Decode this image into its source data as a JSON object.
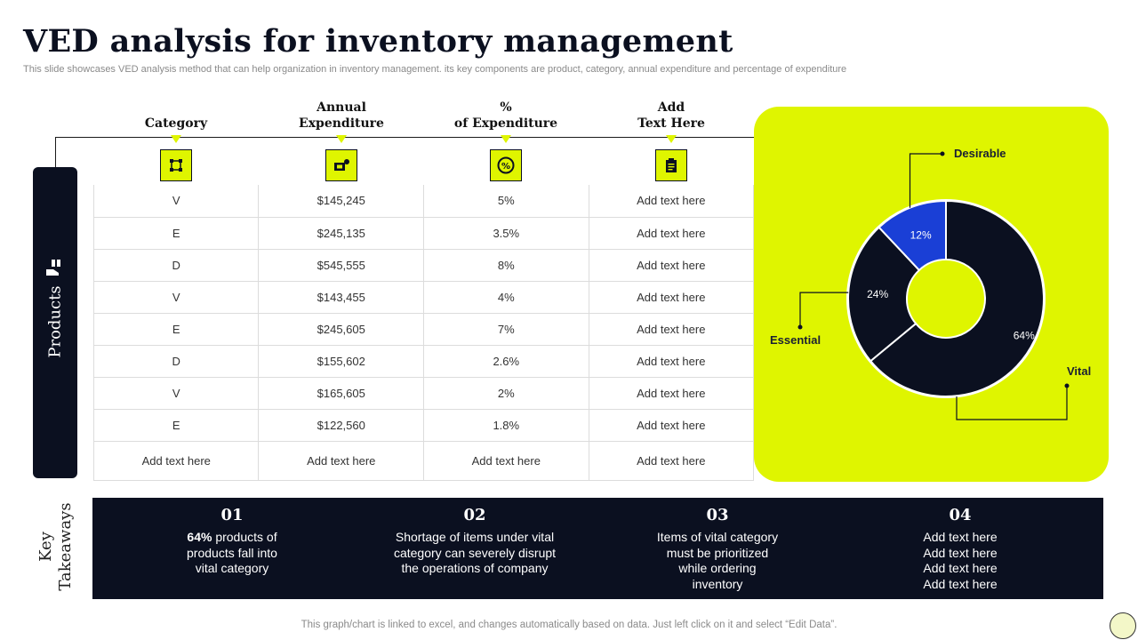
{
  "title": "VED analysis for inventory management",
  "subtitle": "This slide showcases VED analysis method that can help organization in inventory management. its key components are product, category, annual expenditure and percentage of expenditure",
  "columns": [
    {
      "line1": "",
      "line2": "Category",
      "icon": "network-icon"
    },
    {
      "line1": "Annual",
      "line2": "Expenditure",
      "icon": "money-icon"
    },
    {
      "line1": "%",
      "line2": "of Expenditure",
      "icon": "percent-icon"
    },
    {
      "line1": "Add",
      "line2": "Text Here",
      "icon": "clipboard-icon"
    }
  ],
  "products_label": "Products",
  "rows": [
    [
      "V",
      "$145,245",
      "5%",
      "Add text here"
    ],
    [
      "E",
      "$245,135",
      "3.5%",
      "Add text here"
    ],
    [
      "D",
      "$545,555",
      "8%",
      "Add text here"
    ],
    [
      "V",
      "$143,455",
      "4%",
      "Add text here"
    ],
    [
      "E",
      "$245,605",
      "7%",
      "Add text here"
    ],
    [
      "D",
      "$155,602",
      "2.6%",
      "Add text here"
    ],
    [
      "V",
      "$165,605",
      "2%",
      "Add text here"
    ],
    [
      "E",
      "$122,560",
      "1.8%",
      "Add text here"
    ],
    [
      "Add text here",
      "Add text here",
      "Add text here",
      "Add text here"
    ]
  ],
  "chart_data": {
    "type": "pie",
    "variant": "donut",
    "slices": [
      {
        "label": "Vital",
        "value": 64,
        "display": "64%",
        "color": "#0b1020"
      },
      {
        "label": "Essential",
        "value": 24,
        "display": "24%",
        "color": "#0b1020"
      },
      {
        "label": "Desirable",
        "value": 12,
        "display": "12%",
        "color": "#1a3fd6"
      }
    ],
    "legend": "callouts"
  },
  "takeaways": {
    "label_line1": "Key",
    "label_line2": "Takeaways",
    "items": [
      {
        "num": "01",
        "bold": "64%",
        "text": " products of products fall into vital category"
      },
      {
        "num": "02",
        "bold": "",
        "text": "Shortage of items under vital category can severely disrupt the operations of company"
      },
      {
        "num": "03",
        "bold": "",
        "text": "Items of vital category must be prioritized while ordering inventory"
      },
      {
        "num": "04",
        "bold": "",
        "text": "Add text here Add text here Add text here Add text here"
      }
    ]
  },
  "footer": "This graph/chart is linked to excel,  and changes automatically based on data. Just left click on it and select “Edit Data”.",
  "colors": {
    "accent": "#dff500",
    "dark": "#0b1020",
    "blue": "#1a3fd6"
  }
}
